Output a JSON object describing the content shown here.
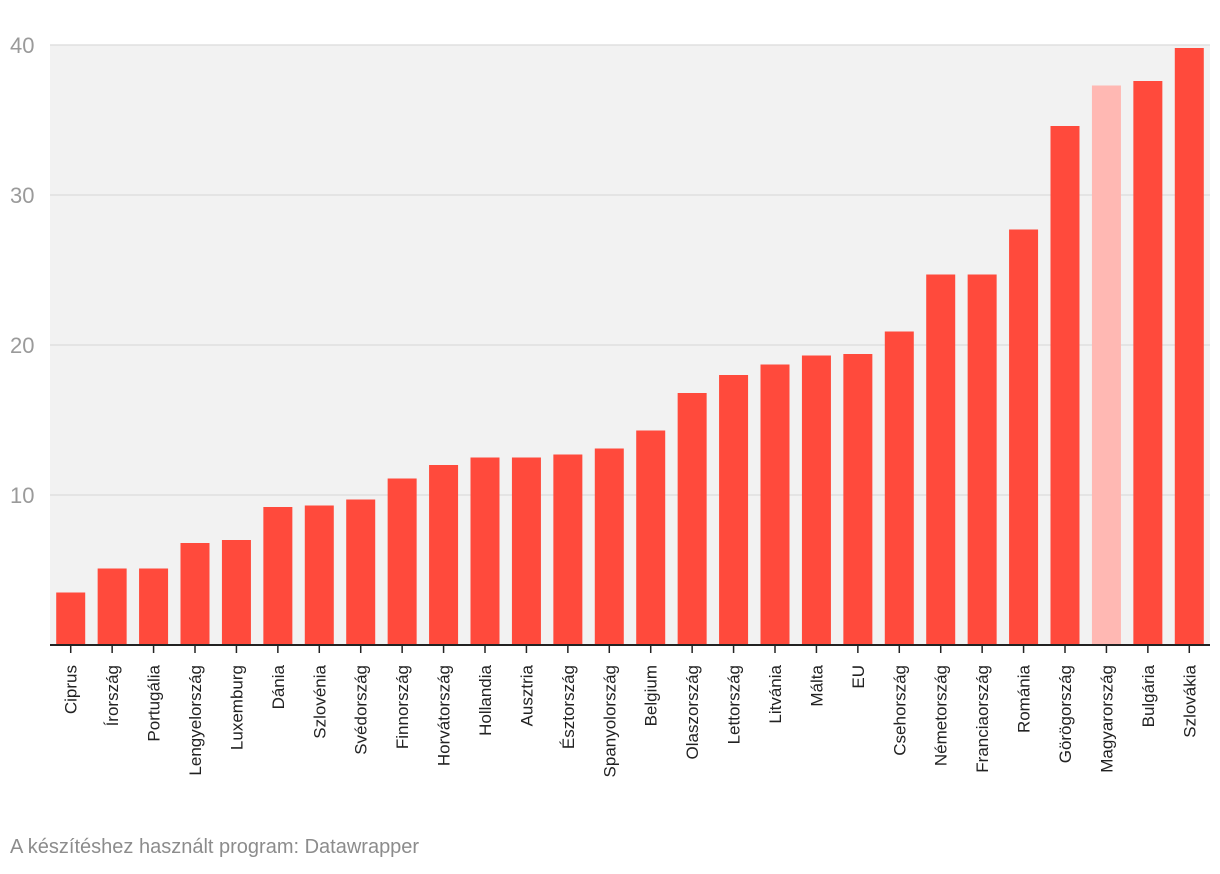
{
  "chart_data": {
    "type": "bar",
    "title": "",
    "xlabel": "",
    "ylabel": "",
    "ylim": [
      0,
      40
    ],
    "yticks": [
      10,
      20,
      30,
      40
    ],
    "grid": true,
    "legend": "none",
    "categories": [
      "Ciprus",
      "Írország",
      "Portugália",
      "Lengyelország",
      "Luxemburg",
      "Dánia",
      "Szlovénia",
      "Svédország",
      "Finnország",
      "Horvátország",
      "Hollandia",
      "Ausztria",
      "Észtország",
      "Spanyolország",
      "Belgium",
      "Olaszország",
      "Lettország",
      "Litvánia",
      "Málta",
      "EU",
      "Csehország",
      "Németország",
      "Franciaország",
      "Románia",
      "Görögország",
      "Magyarország",
      "Bulgária",
      "Szlovákia"
    ],
    "values": [
      3.5,
      5.1,
      5.1,
      6.8,
      7.0,
      9.2,
      9.3,
      9.7,
      11.1,
      12.0,
      12.5,
      12.5,
      12.7,
      13.1,
      14.3,
      16.8,
      18.0,
      18.7,
      19.3,
      19.4,
      20.9,
      24.7,
      24.7,
      27.7,
      34.6,
      37.3,
      37.6,
      39.8
    ],
    "highlight": "Magyarország",
    "colors": {
      "bar": "#ff4a3c",
      "highlight": "#ffb8b3",
      "plot_background": "#f2f2f2",
      "grid": "#e0e0e0",
      "axis": "#222222"
    }
  },
  "footer": {
    "source_note": "A készítéshez használt program: Datawrapper"
  }
}
